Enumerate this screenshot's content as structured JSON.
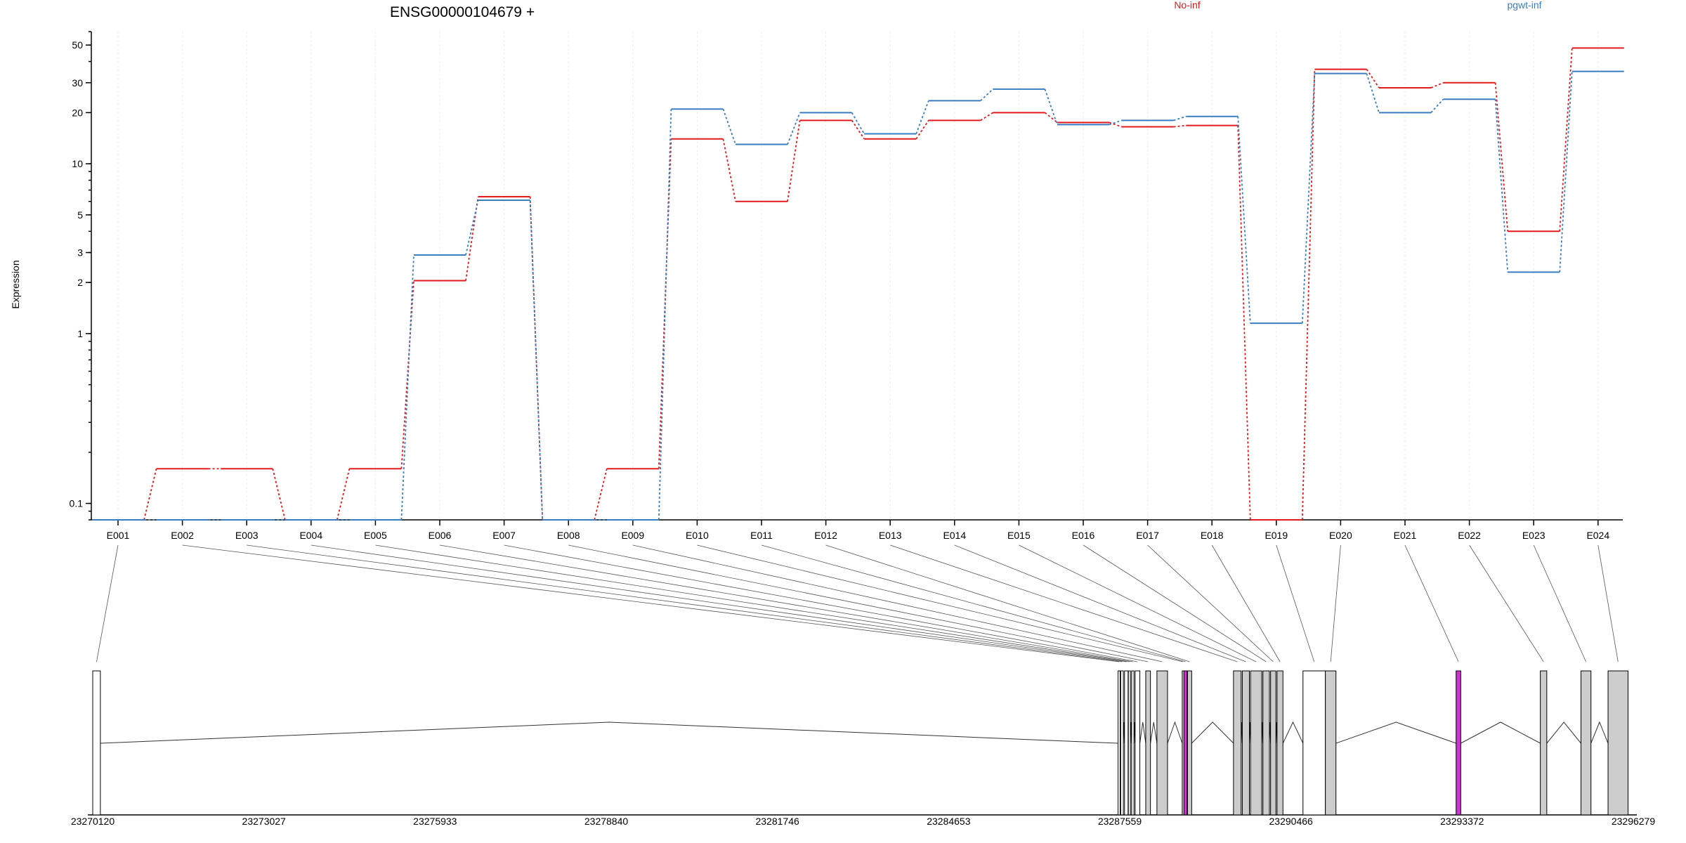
{
  "chart_data": {
    "type": "line",
    "title": "ENSG00000104679 +",
    "ylabel": "Expression",
    "xlabel": "",
    "y_scale": "log",
    "ylim": [
      0.08,
      60
    ],
    "y_ticks": [
      0.1,
      1,
      2,
      3,
      5,
      10,
      20,
      30,
      50
    ],
    "y_tick_labels": [
      "0.1",
      "1",
      "2",
      "3",
      "5",
      "10",
      "20",
      "30",
      "50"
    ],
    "grid": "vertical dotted lines at each exon",
    "legend": {
      "placement": "top",
      "entries": [
        "No-inf",
        "pgwt-inf"
      ]
    },
    "categories": [
      "E001",
      "E002",
      "E003",
      "E004",
      "E005",
      "E006",
      "E007",
      "E008",
      "E009",
      "E010",
      "E011",
      "E012",
      "E013",
      "E014",
      "E015",
      "E016",
      "E017",
      "E018",
      "E019",
      "E020",
      "E021",
      "E022",
      "E023",
      "E024"
    ],
    "series": [
      {
        "name": "No-inf",
        "color": "#e31a1c",
        "values": [
          0.08,
          0.16,
          0.16,
          0.08,
          0.16,
          2.05,
          6.4,
          0.08,
          0.16,
          14,
          6,
          18,
          14,
          18,
          20,
          17.5,
          16.5,
          16.8,
          0.08,
          36,
          28,
          30,
          4,
          48
        ]
      },
      {
        "name": "pgwt-inf",
        "color": "#3a7ebf",
        "values": [
          0.08,
          0.08,
          0.08,
          0.08,
          0.08,
          2.9,
          6.1,
          0.08,
          0.08,
          21,
          13,
          20,
          15,
          23.5,
          27.5,
          17,
          18,
          19,
          1.15,
          34,
          20,
          24,
          2.3,
          35
        ]
      }
    ],
    "gene_model": {
      "x_ticks": [
        "23270120",
        "23273027",
        "23275933",
        "23278840",
        "23281746",
        "23284653",
        "23287559",
        "23290466",
        "23293372",
        "23296279"
      ],
      "coord_range": [
        23270120,
        23296279
      ],
      "highlight_color": "#cc33cc",
      "highlighted_exons": [
        "E011",
        "E021"
      ],
      "exons": [
        {
          "id": "E001",
          "start": 23270120,
          "end": 23270250,
          "fill": "#ffffff"
        },
        {
          "id": "E002",
          "start": 23287530,
          "end": 23287565,
          "fill": "#ffffff"
        },
        {
          "id": "E003",
          "start": 23287575,
          "end": 23287620,
          "fill": "#ffffff"
        },
        {
          "id": "E004",
          "start": 23287640,
          "end": 23287700,
          "fill": "#ffffff"
        },
        {
          "id": "E005",
          "start": 23287705,
          "end": 23287740,
          "fill": "#ffffff"
        },
        {
          "id": "E006",
          "start": 23287760,
          "end": 23287800,
          "fill": "#ffffff"
        },
        {
          "id": "E007",
          "start": 23287820,
          "end": 23287900,
          "fill": "#ffffff"
        },
        {
          "id": "E008",
          "start": 23288000,
          "end": 23288080,
          "fill": "#cccccc"
        },
        {
          "id": "E009",
          "start": 23288190,
          "end": 23288370,
          "fill": "#cccccc"
        },
        {
          "id": "E010",
          "start": 23288620,
          "end": 23288640,
          "fill": "#cccccc"
        },
        {
          "id": "E011",
          "start": 23288650,
          "end": 23288700,
          "fill": "#cc33cc"
        },
        {
          "id": "E012",
          "start": 23288710,
          "end": 23288780,
          "fill": "#cccccc"
        },
        {
          "id": "E013",
          "start": 23289490,
          "end": 23289620,
          "fill": "#cccccc"
        },
        {
          "id": "E014",
          "start": 23289640,
          "end": 23289760,
          "fill": "#cccccc"
        },
        {
          "id": "E015",
          "start": 23289780,
          "end": 23289970,
          "fill": "#cccccc"
        },
        {
          "id": "E016",
          "start": 23289990,
          "end": 23290100,
          "fill": "#cccccc"
        },
        {
          "id": "E017",
          "start": 23290120,
          "end": 23290210,
          "fill": "#cccccc"
        },
        {
          "id": "E018",
          "start": 23290230,
          "end": 23290330,
          "fill": "#cccccc"
        },
        {
          "id": "E019",
          "start": 23290670,
          "end": 23291050,
          "fill": "#ffffff"
        },
        {
          "id": "E020",
          "start": 23291050,
          "end": 23291230,
          "fill": "#cccccc"
        },
        {
          "id": "E021",
          "start": 23293270,
          "end": 23293350,
          "fill": "#cc33cc"
        },
        {
          "id": "E022",
          "start": 23294700,
          "end": 23294810,
          "fill": "#cccccc"
        },
        {
          "id": "E023",
          "start": 23295390,
          "end": 23295560,
          "fill": "#cccccc"
        },
        {
          "id": "E024",
          "start": 23295850,
          "end": 23296190,
          "fill": "#cccccc"
        }
      ]
    }
  }
}
